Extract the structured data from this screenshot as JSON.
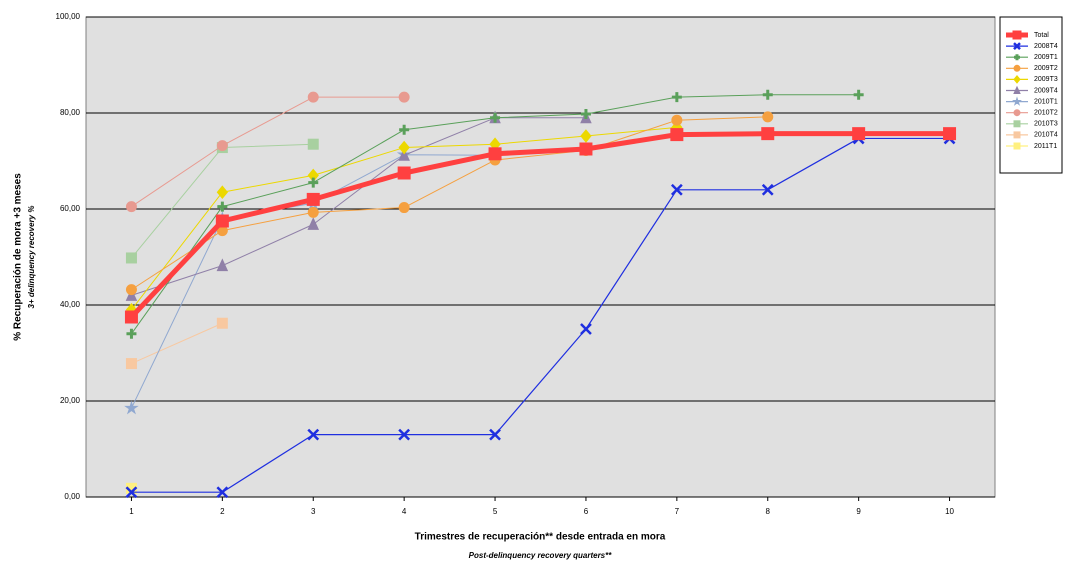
{
  "chart_data": {
    "type": "line",
    "x_label": "Trimestres de recuperación** desde entrada en mora",
    "x_sublabel": "Post-delinquency recovery quarters**",
    "y_label": "% Recuperación de mora +3 meses",
    "y_sublabel": "3+ delinquency recovery %",
    "x": [
      1,
      2,
      3,
      4,
      5,
      6,
      7,
      8,
      9,
      10
    ],
    "xlim": [
      0.5,
      10.5
    ],
    "xticks": [
      1,
      2,
      3,
      4,
      5,
      6,
      7,
      8,
      9,
      10
    ],
    "ylim": [
      0,
      100
    ],
    "yticks": [
      {
        "value": 0,
        "label": "0,00"
      },
      {
        "value": 20,
        "label": "20,00"
      },
      {
        "value": 40,
        "label": "40,00"
      },
      {
        "value": 60,
        "label": "60,00"
      },
      {
        "value": 80,
        "label": "80,00"
      },
      {
        "value": 100,
        "label": "100,00"
      }
    ],
    "grid": true,
    "legend": "right",
    "series": [
      {
        "name": "Total",
        "color": "#ff4040",
        "marker": "square",
        "line_width": 5,
        "values": [
          37.5,
          57.5,
          62,
          67.5,
          71.5,
          72.5,
          75.5,
          75.7,
          75.7,
          75.7
        ]
      },
      {
        "name": "2008T4",
        "color": "#1f2fe0",
        "marker": "x",
        "line_width": 1.2,
        "values": [
          1,
          1,
          13,
          13,
          13,
          35,
          64,
          64,
          74.7,
          74.7
        ]
      },
      {
        "name": "2009T1",
        "color": "#5aa05a",
        "marker": "plus",
        "line_width": 1,
        "values": [
          34,
          60.5,
          65.5,
          76.5,
          79,
          79.8,
          83.3,
          83.8,
          83.8,
          null
        ]
      },
      {
        "name": "2009T2",
        "color": "#f5a040",
        "marker": "circle",
        "line_width": 1,
        "values": [
          43.2,
          55.5,
          59.3,
          60.3,
          70.2,
          72.2,
          78.5,
          79.2,
          null,
          null
        ]
      },
      {
        "name": "2009T3",
        "color": "#ecd800",
        "marker": "diamond",
        "line_width": 1,
        "values": [
          39,
          63.5,
          67,
          72.8,
          73.5,
          75.2,
          77,
          null,
          null,
          null
        ]
      },
      {
        "name": "2009T4",
        "color": "#9080a8",
        "marker": "triangle",
        "line_width": 1,
        "values": [
          42,
          48.2,
          56.8,
          71.2,
          79,
          79,
          null,
          null,
          null,
          null
        ]
      },
      {
        "name": "2010T1",
        "color": "#90a8d0",
        "marker": "star",
        "line_width": 1,
        "values": [
          18.5,
          58,
          61.2,
          71.3,
          71.2,
          null,
          null,
          null,
          null,
          null
        ]
      },
      {
        "name": "2010T2",
        "color": "#e89a90",
        "marker": "circle",
        "line_width": 1,
        "values": [
          60.5,
          73.2,
          83.3,
          83.3,
          null,
          null,
          null,
          null,
          null,
          null
        ]
      },
      {
        "name": "2010T3",
        "color": "#a8d0a0",
        "marker": "square",
        "line_width": 1,
        "values": [
          49.8,
          72.8,
          73.5,
          null,
          null,
          null,
          null,
          null,
          null,
          null
        ]
      },
      {
        "name": "2010T4",
        "color": "#f8c8a0",
        "marker": "square",
        "line_width": 1,
        "values": [
          27.8,
          36.2,
          null,
          null,
          null,
          null,
          null,
          null,
          null,
          null
        ]
      },
      {
        "name": "2011T1",
        "color": "#fff080",
        "marker": "square",
        "line_width": 1,
        "values": [
          1.8,
          null,
          null,
          null,
          null,
          null,
          null,
          null,
          null,
          null
        ]
      }
    ]
  }
}
